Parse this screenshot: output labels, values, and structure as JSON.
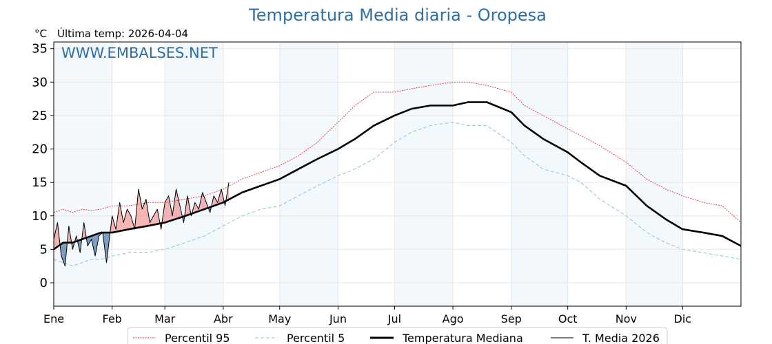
{
  "chart_data": {
    "type": "line",
    "title": "Temperatura Media diaria - Oropesa",
    "ylabel": "°C",
    "last_update": "Última temp: 2026-04-04",
    "watermark": "WWW.EMBALSES.NET",
    "ylim": [
      -3.5,
      36
    ],
    "yticks": [
      0,
      5,
      10,
      15,
      20,
      25,
      30,
      35
    ],
    "x_range_days": [
      0,
      365
    ],
    "months": [
      {
        "label": "Ene",
        "day": 0
      },
      {
        "label": "Feb",
        "day": 31
      },
      {
        "label": "Mar",
        "day": 59
      },
      {
        "label": "Abr",
        "day": 90
      },
      {
        "label": "May",
        "day": 120
      },
      {
        "label": "Jun",
        "day": 151
      },
      {
        "label": "Jul",
        "day": 181
      },
      {
        "label": "Ago",
        "day": 212
      },
      {
        "label": "Sep",
        "day": 243
      },
      {
        "label": "Oct",
        "day": 273
      },
      {
        "label": "Nov",
        "day": 304
      },
      {
        "label": "Dic",
        "day": 334
      }
    ],
    "grid": true,
    "legend_position": "bottom",
    "series": [
      {
        "name": "Percentil 95",
        "color": "#e03030",
        "style": "dotted",
        "x": [
          0,
          5,
          10,
          15,
          20,
          25,
          31,
          40,
          50,
          59,
          70,
          80,
          90,
          100,
          110,
          120,
          130,
          140,
          151,
          160,
          170,
          181,
          190,
          200,
          212,
          220,
          230,
          243,
          250,
          260,
          273,
          280,
          290,
          304,
          315,
          325,
          334,
          345,
          355,
          365
        ],
        "y": [
          10.5,
          11,
          10.5,
          11,
          10.8,
          11,
          11.5,
          11.5,
          12,
          12,
          12.5,
          13,
          14,
          15.5,
          16.5,
          17.5,
          19,
          21,
          24,
          26.5,
          28.5,
          28.5,
          29,
          29.5,
          30,
          30,
          29.5,
          28.5,
          26.5,
          25,
          23,
          22,
          20.5,
          18,
          15.5,
          14,
          13,
          12,
          11.5,
          9
        ]
      },
      {
        "name": "Percentil 5",
        "color": "#9ccbe0",
        "style": "dashed",
        "x": [
          0,
          5,
          10,
          15,
          20,
          25,
          31,
          40,
          50,
          59,
          70,
          80,
          90,
          100,
          110,
          120,
          130,
          140,
          151,
          160,
          170,
          181,
          190,
          200,
          212,
          220,
          230,
          243,
          250,
          260,
          273,
          280,
          290,
          304,
          315,
          325,
          334,
          345,
          355,
          365
        ],
        "y": [
          3.5,
          3,
          2.5,
          3,
          3.5,
          3.5,
          4,
          4.5,
          4.5,
          5,
          6,
          7,
          8.5,
          10,
          11,
          11.5,
          13,
          14.5,
          16,
          17,
          18.5,
          21,
          22.5,
          23.5,
          24,
          23.5,
          23.5,
          21,
          19,
          17,
          16,
          15,
          12.5,
          10,
          7.5,
          6,
          5,
          4.5,
          4,
          3.5
        ]
      },
      {
        "name": "Temperatura Mediana",
        "color": "#000000",
        "style": "solid-thick",
        "x": [
          0,
          5,
          10,
          15,
          20,
          25,
          31,
          40,
          50,
          59,
          70,
          80,
          90,
          100,
          110,
          120,
          130,
          140,
          151,
          160,
          170,
          181,
          190,
          200,
          212,
          220,
          230,
          243,
          250,
          260,
          273,
          280,
          290,
          304,
          315,
          325,
          334,
          345,
          355,
          365
        ],
        "y": [
          5,
          6,
          6,
          6.5,
          7,
          7.5,
          7.5,
          8,
          8.5,
          9,
          10,
          11,
          12,
          13.5,
          14.5,
          15.5,
          17,
          18.5,
          20,
          21.5,
          23.5,
          25,
          26,
          26.5,
          26.5,
          27,
          27,
          25.5,
          23.5,
          21.5,
          19.5,
          18,
          16,
          14.5,
          11.5,
          9.5,
          8,
          7.5,
          7,
          5.5
        ]
      },
      {
        "name": "T. Media 2026",
        "color": "#000000",
        "style": "solid-thin",
        "x": [
          0,
          2,
          4,
          6,
          8,
          10,
          12,
          14,
          16,
          18,
          20,
          22,
          24,
          26,
          28,
          31,
          33,
          35,
          37,
          39,
          41,
          43,
          45,
          47,
          49,
          51,
          53,
          55,
          57,
          59,
          61,
          63,
          65,
          67,
          69,
          71,
          73,
          75,
          77,
          79,
          81,
          83,
          85,
          87,
          89,
          91,
          93
        ],
        "y": [
          6.5,
          9,
          4,
          2.5,
          8.5,
          5,
          7,
          4.5,
          9,
          5.5,
          6.5,
          4,
          7,
          7.5,
          3,
          10,
          8,
          12,
          9,
          11,
          10,
          8,
          14,
          11,
          12.5,
          9,
          10,
          11,
          8,
          12,
          13,
          10,
          14,
          11.5,
          9,
          13,
          10,
          12,
          11,
          13.5,
          12,
          10.5,
          13,
          12,
          14,
          11.5,
          15
        ]
      }
    ]
  }
}
